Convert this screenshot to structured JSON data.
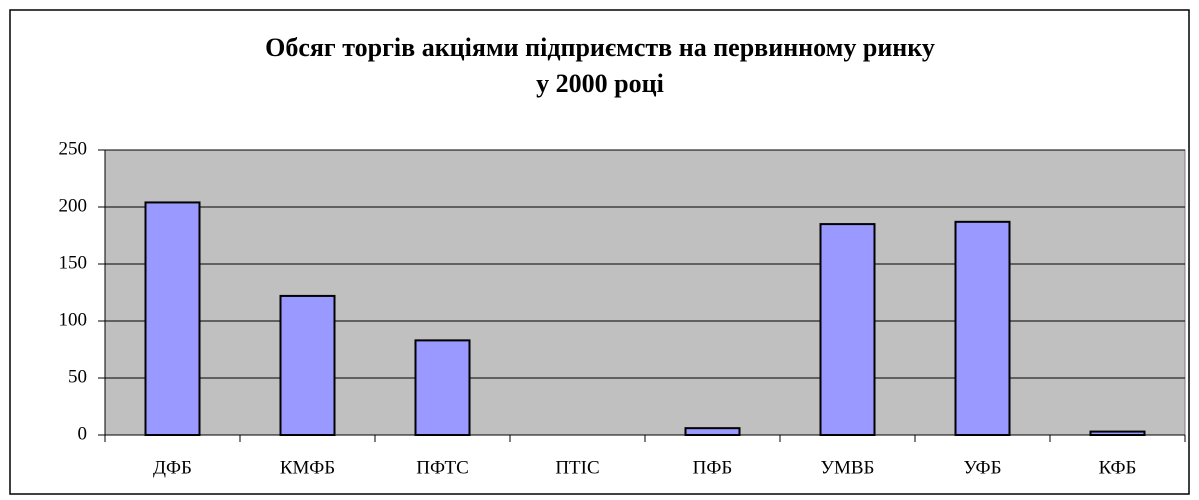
{
  "chart_data": {
    "type": "bar",
    "title": [
      "Обсяг торгів акціями підприємств на первинному ринку",
      "у 2000 році"
    ],
    "categories": [
      "ДФБ",
      "КМФБ",
      "ПФТС",
      "ПТІС",
      "ПФБ",
      "УМВБ",
      "УФБ",
      "КФБ"
    ],
    "values": [
      204,
      122,
      83,
      0,
      6,
      185,
      187,
      3
    ],
    "color": "#9999ff",
    "ylim": [
      0,
      250
    ],
    "yticks": [
      0,
      50,
      100,
      150,
      200,
      250
    ],
    "grid": true
  }
}
